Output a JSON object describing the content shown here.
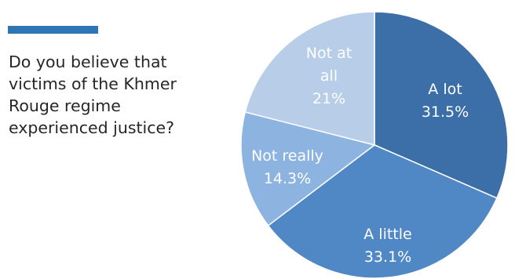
{
  "question": "Do you believe that victims of the Khmer Rouge regime experienced justice?",
  "colors": {
    "accent": "#2e75b6",
    "slices": [
      "#3c6fa8",
      "#4f88c5",
      "#8db3e0",
      "#b7cde8"
    ]
  },
  "chart_data": {
    "type": "pie",
    "title": "",
    "slices": [
      {
        "label": "A lot",
        "value": 31.5,
        "value_label": "31.5%"
      },
      {
        "label": "A little",
        "value": 33.1,
        "value_label": "33.1%"
      },
      {
        "label": "Not really",
        "value": 14.3,
        "value_label": "14.3%"
      },
      {
        "label": "Not at all",
        "value": 21,
        "value_label": "21%"
      }
    ],
    "start_angle": "12 o'clock",
    "direction": "clockwise",
    "legend": "none"
  }
}
